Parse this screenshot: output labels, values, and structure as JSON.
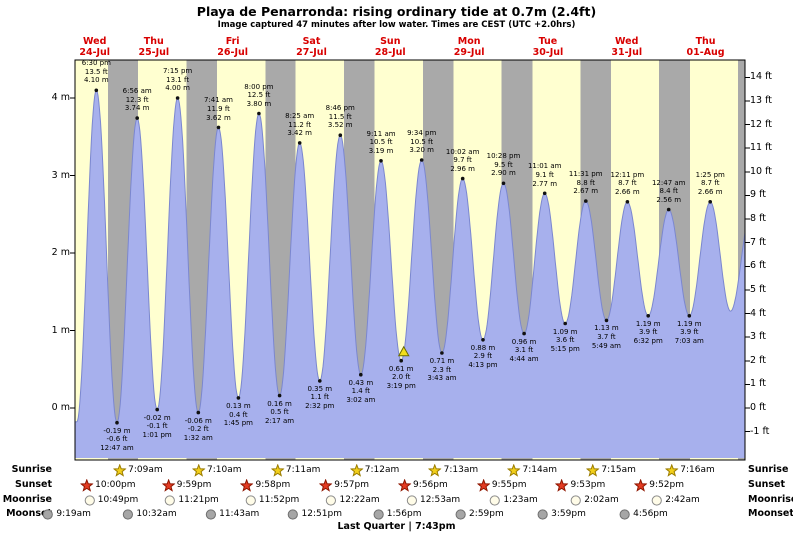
{
  "header": {
    "title": "Playa de Penarronda: rising ordinary tide at 0.7m (2.4ft)",
    "subtitle": "Image captured 47 minutes after low water. Times are CEST (UTC +2.0hrs)"
  },
  "days": [
    {
      "name": "Wed",
      "date": "24-Jul"
    },
    {
      "name": "Thu",
      "date": "25-Jul"
    },
    {
      "name": "Fri",
      "date": "26-Jul"
    },
    {
      "name": "Sat",
      "date": "27-Jul"
    },
    {
      "name": "Sun",
      "date": "28-Jul"
    },
    {
      "name": "Mon",
      "date": "29-Jul"
    },
    {
      "name": "Tue",
      "date": "30-Jul"
    },
    {
      "name": "Wed",
      "date": "31-Jul"
    },
    {
      "name": "Thu",
      "date": "01-Aug"
    }
  ],
  "axes": {
    "left_ticks": [
      "4 m",
      "3 m",
      "2 m",
      "1 m",
      "0 m"
    ],
    "right_ticks": [
      "14 ft",
      "13 ft",
      "12 ft",
      "11 ft",
      "10 ft",
      "9 ft",
      "8 ft",
      "7 ft",
      "6 ft",
      "5 ft",
      "4 ft",
      "3 ft",
      "2 ft",
      "1 ft",
      "0 ft",
      "-1 ft"
    ]
  },
  "chart_data": {
    "type": "area",
    "title": "Playa de Penarronda tide curve",
    "x_start": "Wed 24-Jul 12:00",
    "x_end": "Fri 02-Aug 00:00",
    "y_left_ticks_m": [
      4,
      3,
      2,
      1,
      0
    ],
    "y_right_ticks_ft": [
      14,
      13,
      12,
      11,
      10,
      9,
      8,
      7,
      6,
      5,
      4,
      3,
      2,
      1,
      0,
      -1
    ],
    "highs": [
      {
        "day": 0,
        "time": "6:30 pm",
        "ft": "13.5 ft",
        "m": "4.10 m",
        "height_m": 4.1
      },
      {
        "day": 1,
        "time": "6:56 am",
        "ft": "12.3 ft",
        "m": "3.74 m",
        "height_m": 3.74
      },
      {
        "day": 1,
        "time": "7:15 pm",
        "ft": "13.1 ft",
        "m": "4.00 m",
        "height_m": 4.0
      },
      {
        "day": 2,
        "time": "7:41 am",
        "ft": "11.9 ft",
        "m": "3.62 m",
        "height_m": 3.62
      },
      {
        "day": 2,
        "time": "8:00 pm",
        "ft": "12.5 ft",
        "m": "3.80 m",
        "height_m": 3.8
      },
      {
        "day": 3,
        "time": "8:25 am",
        "ft": "11.2 ft",
        "m": "3.42 m",
        "height_m": 3.42
      },
      {
        "day": 3,
        "time": "8:46 pm",
        "ft": "11.5 ft",
        "m": "3.52 m",
        "height_m": 3.52
      },
      {
        "day": 4,
        "time": "9:11 am",
        "ft": "10.5 ft",
        "m": "3.19 m",
        "height_m": 3.19
      },
      {
        "day": 4,
        "time": "9:34 pm",
        "ft": "10.5 ft",
        "m": "3.20 m",
        "height_m": 3.2
      },
      {
        "day": 5,
        "time": "10:02 am",
        "ft": "9.7 ft",
        "m": "2.96 m",
        "height_m": 2.96
      },
      {
        "day": 5,
        "time": "10:28 pm",
        "ft": "9.5 ft",
        "m": "2.90 m",
        "height_m": 2.9
      },
      {
        "day": 6,
        "time": "11:01 am",
        "ft": "9.1 ft",
        "m": "2.77 m",
        "height_m": 2.77
      },
      {
        "day": 6,
        "time": "11:31 pm",
        "ft": "8.8 ft",
        "m": "2.67 m",
        "height_m": 2.67
      },
      {
        "day": 7,
        "time": "12:11 pm",
        "ft": "8.7 ft",
        "m": "2.66 m",
        "height_m": 2.66
      },
      {
        "day": 8,
        "time": "12:47 am",
        "ft": "8.4 ft",
        "m": "2.56 m",
        "height_m": 2.56
      },
      {
        "day": 8,
        "time": "1:25 pm",
        "ft": "8.7 ft",
        "m": "2.66 m",
        "height_m": 2.66
      }
    ],
    "lows": [
      {
        "day": 1,
        "m": "-0.19 m",
        "ft": "-0.6 ft",
        "time": "12:47 am",
        "height_m": -0.19
      },
      {
        "day": 1,
        "m": "-0.02 m",
        "ft": "-0.1 ft",
        "time": "1:01 pm",
        "height_m": -0.02
      },
      {
        "day": 2,
        "m": "-0.06 m",
        "ft": "-0.2 ft",
        "time": "1:32 am",
        "height_m": -0.06
      },
      {
        "day": 2,
        "m": "0.13 m",
        "ft": "0.4 ft",
        "time": "1:45 pm",
        "height_m": 0.13
      },
      {
        "day": 3,
        "m": "0.16 m",
        "ft": "0.5 ft",
        "time": "2:17 am",
        "height_m": 0.16
      },
      {
        "day": 3,
        "m": "0.35 m",
        "ft": "1.1 ft",
        "time": "2:32 pm",
        "height_m": 0.35
      },
      {
        "day": 4,
        "m": "0.43 m",
        "ft": "1.4 ft",
        "time": "3:02 am",
        "height_m": 0.43
      },
      {
        "day": 4,
        "m": "0.61 m",
        "ft": "2.0 ft",
        "time": "3:19 pm",
        "height_m": 0.61
      },
      {
        "day": 5,
        "m": "0.71 m",
        "ft": "2.3 ft",
        "time": "3:43 am",
        "height_m": 0.71
      },
      {
        "day": 5,
        "m": "0.88 m",
        "ft": "2.9 ft",
        "time": "4:13 pm",
        "height_m": 0.88
      },
      {
        "day": 6,
        "m": "0.96 m",
        "ft": "3.1 ft",
        "time": "4:44 am",
        "height_m": 0.96
      },
      {
        "day": 6,
        "m": "1.09 m",
        "ft": "3.6 ft",
        "time": "5:15 pm",
        "height_m": 1.09
      },
      {
        "day": 7,
        "m": "1.13 m",
        "ft": "3.7 ft",
        "time": "5:49 am",
        "height_m": 1.13
      },
      {
        "day": 7,
        "m": "1.19 m",
        "ft": "3.9 ft",
        "time": "6:32 pm",
        "height_m": 1.19
      },
      {
        "day": 8,
        "m": "1.19 m",
        "ft": "3.9 ft",
        "time": "7:03 am",
        "height_m": 1.19
      }
    ],
    "marker": {
      "low_index": 7,
      "minutes_after_low": 47,
      "height_m": 0.7,
      "height_ft": 2.4
    }
  },
  "astro": {
    "rows": [
      {
        "id": "sunrise",
        "label": "Sunrise",
        "icon": "star",
        "entries": [
          {
            "day": 1,
            "time": "7:09am"
          },
          {
            "day": 2,
            "time": "7:10am"
          },
          {
            "day": 3,
            "time": "7:11am"
          },
          {
            "day": 4,
            "time": "7:12am"
          },
          {
            "day": 5,
            "time": "7:13am"
          },
          {
            "day": 6,
            "time": "7:14am"
          },
          {
            "day": 7,
            "time": "7:15am"
          },
          {
            "day": 8,
            "time": "7:16am"
          }
        ]
      },
      {
        "id": "sunset",
        "label": "Sunset",
        "icon": "star",
        "entries": [
          {
            "day": 0,
            "time": "10:00pm"
          },
          {
            "day": 1,
            "time": "9:59pm"
          },
          {
            "day": 2,
            "time": "9:58pm"
          },
          {
            "day": 3,
            "time": "9:57pm"
          },
          {
            "day": 4,
            "time": "9:56pm"
          },
          {
            "day": 5,
            "time": "9:55pm"
          },
          {
            "day": 6,
            "time": "9:53pm"
          },
          {
            "day": 7,
            "time": "9:52pm"
          }
        ]
      },
      {
        "id": "moonrise",
        "label": "Moonrise",
        "icon": "circle",
        "entries": [
          {
            "day": 0,
            "time": "10:49pm"
          },
          {
            "day": 1,
            "time": "11:21pm"
          },
          {
            "day": 2,
            "time": "11:52pm"
          },
          {
            "day": 4,
            "time": "12:22am"
          },
          {
            "day": 5,
            "time": "12:53am"
          },
          {
            "day": 6,
            "time": "1:23am"
          },
          {
            "day": 7,
            "time": "2:02am"
          },
          {
            "day": 8,
            "time": "2:42am"
          }
        ]
      },
      {
        "id": "moonset",
        "label": "Moonset",
        "icon": "circle",
        "entries": [
          {
            "day": 0,
            "time": "9:19am"
          },
          {
            "day": 1,
            "time": "10:32am"
          },
          {
            "day": 2,
            "time": "11:43am"
          },
          {
            "day": 3,
            "time": "12:51pm"
          },
          {
            "day": 4,
            "time": "1:56pm"
          },
          {
            "day": 5,
            "time": "2:59pm"
          },
          {
            "day": 6,
            "time": "3:59pm"
          },
          {
            "day": 7,
            "time": "4:56pm"
          }
        ]
      }
    ],
    "footer": "Last Quarter | 7:43pm"
  },
  "colors": {
    "day_bg": "#ffffd0",
    "night_bg": "#a9a9a9",
    "tide_fill": "#a7b0ed",
    "tide_stroke": "#7b87cf",
    "day_label": "#d80000",
    "marker_fill": "#f2de1c",
    "marker_stroke": "#6b6b00",
    "sunrise_icon": "#f2cf1a",
    "sunrise_icon_stroke": "#9b7d00",
    "sunset_icon": "#e33b22",
    "sunset_icon_stroke": "#8e1600",
    "moonrise_icon": "#fffce8",
    "moonrise_icon_stroke": "#8a8a8a",
    "moonset_icon": "#a6a6a6",
    "moonset_icon_stroke": "#6f6f6f"
  }
}
